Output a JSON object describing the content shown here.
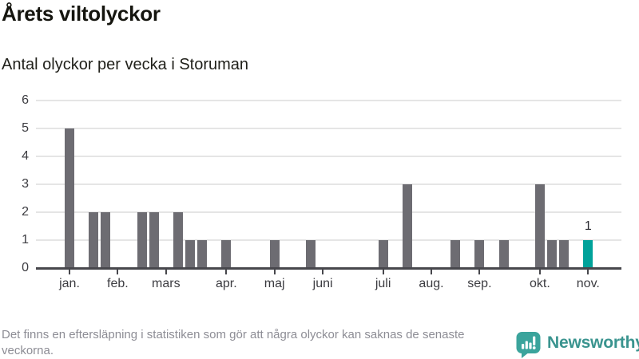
{
  "header": {
    "title": "Årets viltolyckor",
    "subtitle": "Antal olyckor per vecka i Storuman"
  },
  "chart_data": {
    "type": "bar",
    "title": "Årets viltolyckor",
    "subtitle": "Antal olyckor per vecka i Storuman",
    "months": [
      {
        "label": "jan.",
        "week": 1
      },
      {
        "label": "feb.",
        "week": 5
      },
      {
        "label": "mars",
        "week": 9
      },
      {
        "label": "apr.",
        "week": 14
      },
      {
        "label": "maj",
        "week": 18
      },
      {
        "label": "juni",
        "week": 22
      },
      {
        "label": "juli",
        "week": 27
      },
      {
        "label": "aug.",
        "week": 31
      },
      {
        "label": "sep.",
        "week": 35
      },
      {
        "label": "okt.",
        "week": 40
      },
      {
        "label": "nov.",
        "week": 44
      }
    ],
    "values": [
      5,
      0,
      2,
      2,
      0,
      0,
      2,
      2,
      0,
      2,
      1,
      1,
      0,
      1,
      0,
      0,
      0,
      1,
      0,
      0,
      1,
      0,
      0,
      0,
      0,
      0,
      1,
      0,
      3,
      0,
      0,
      0,
      1,
      0,
      1,
      0,
      1,
      0,
      0,
      3,
      1,
      1,
      0,
      1
    ],
    "highlight_index": 43,
    "highlight_label": "1",
    "ylim": [
      0,
      6
    ],
    "yticks": [
      0,
      1,
      2,
      3,
      4,
      5,
      6
    ],
    "grid": true,
    "legend": "none",
    "colors": {
      "bar": "#6d6c72",
      "highlight": "#00a29a",
      "grid": "#e5e5e5",
      "axis": "#47474c",
      "tick_text": "#3c3c41",
      "value_label": "#2b2b30"
    }
  },
  "footer": {
    "note": "Det finns en eftersläpning i statistiken som gör att några olyckor kan saknas de senaste veckorna.",
    "brand": "Newsworthy",
    "brand_color": "#3a948f",
    "icon_color": "#3ba49c"
  }
}
